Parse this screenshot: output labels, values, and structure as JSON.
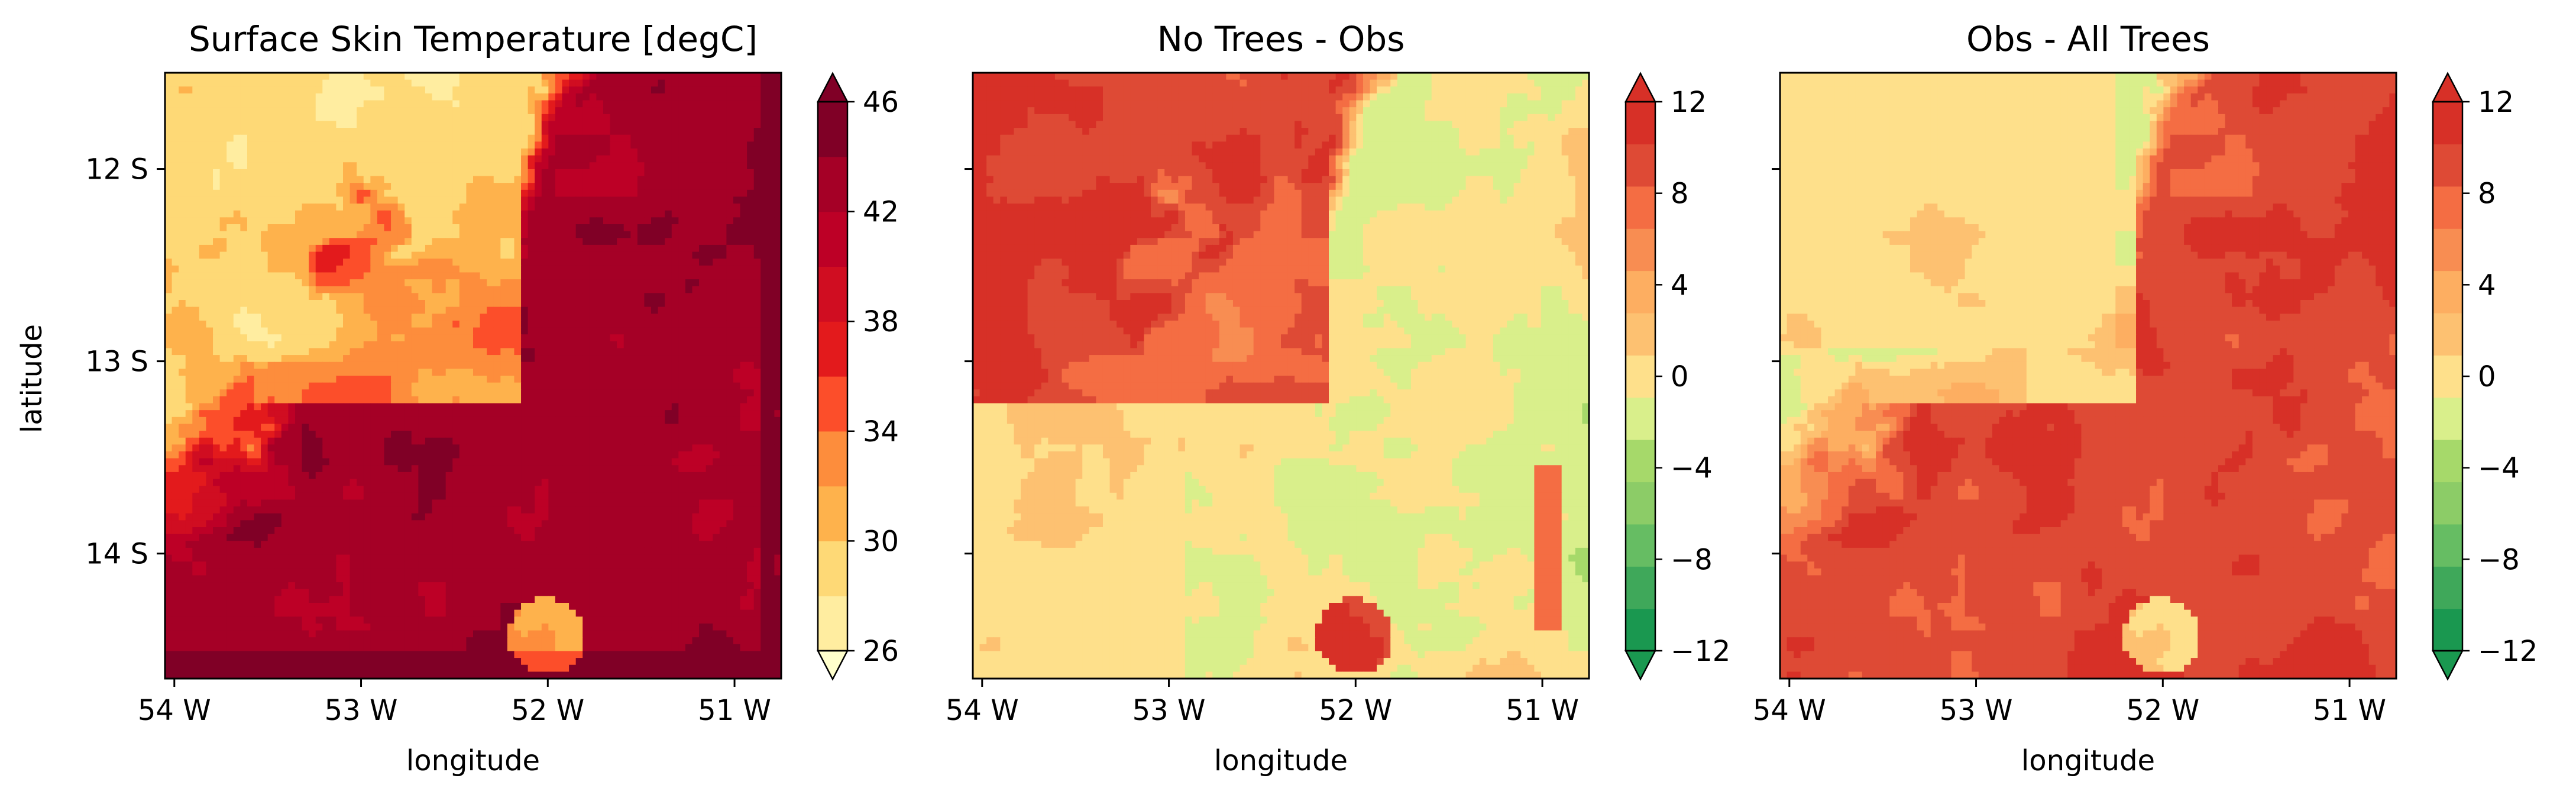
{
  "figure": {
    "y_axis_label": "latitude"
  },
  "chart_data": [
    {
      "type": "heatmap",
      "title": "Surface Skin Temperature [degC]",
      "xlabel": "longitude",
      "ylabel": "latitude",
      "x_ticks": [
        "54 W",
        "53 W",
        "52 W",
        "51 W"
      ],
      "y_ticks": [
        "12 S",
        "13 S",
        "14 S"
      ],
      "x_range": [
        -54.05,
        -50.75
      ],
      "y_range": [
        -14.65,
        -11.5
      ],
      "colorbar": {
        "ticks": [
          "26",
          "30",
          "34",
          "38",
          "42",
          "46"
        ],
        "range": [
          26,
          46
        ],
        "levels": 10,
        "extend": "both",
        "colors": [
          "#ffffcc",
          "#ffeda0",
          "#fed976",
          "#feb24c",
          "#fd8d3c",
          "#fc4e2a",
          "#e31a1c",
          "#d00d21",
          "#bd0026",
          "#a50026",
          "#800026",
          "#800026"
        ]
      },
      "pattern": "skin"
    },
    {
      "type": "heatmap",
      "title": "No Trees - Obs",
      "xlabel": "longitude",
      "x_ticks": [
        "54 W",
        "53 W",
        "52 W",
        "51 W"
      ],
      "y_ticks": [
        "",
        "",
        ""
      ],
      "x_range": [
        -54.05,
        -50.75
      ],
      "y_range": [
        -14.65,
        -11.5
      ],
      "colorbar": {
        "ticks": [
          "12",
          "8",
          "4",
          "0",
          "−4",
          "−8",
          "−12"
        ],
        "range": [
          -12,
          12
        ],
        "levels": 12,
        "extend": "both",
        "colors": [
          "#1a9850",
          "#1a9850",
          "#3fa85a",
          "#66bd63",
          "#8ccc67",
          "#a6d96a",
          "#d9ef8b",
          "#fee08b",
          "#fdc171",
          "#fdae61",
          "#f88d52",
          "#f46d43",
          "#de4a35",
          "#d73027",
          "#d73027"
        ]
      },
      "pattern": "notrees"
    },
    {
      "type": "heatmap",
      "title": "Obs - All Trees",
      "xlabel": "longitude",
      "x_ticks": [
        "54 W",
        "53 W",
        "52 W",
        "51 W"
      ],
      "y_ticks": [
        "",
        "",
        ""
      ],
      "x_range": [
        -54.05,
        -50.75
      ],
      "y_range": [
        -14.65,
        -11.5
      ],
      "colorbar": {
        "ticks": [
          "12",
          "8",
          "4",
          "0",
          "−4",
          "−8",
          "−12"
        ],
        "range": [
          -12,
          12
        ],
        "levels": 12,
        "extend": "both",
        "colors": [
          "#1a9850",
          "#1a9850",
          "#3fa85a",
          "#66bd63",
          "#8ccc67",
          "#a6d96a",
          "#d9ef8b",
          "#fee08b",
          "#fdc171",
          "#fdae61",
          "#f88d52",
          "#f46d43",
          "#de4a35",
          "#d73027",
          "#d73027"
        ]
      },
      "pattern": "alltrees"
    }
  ]
}
